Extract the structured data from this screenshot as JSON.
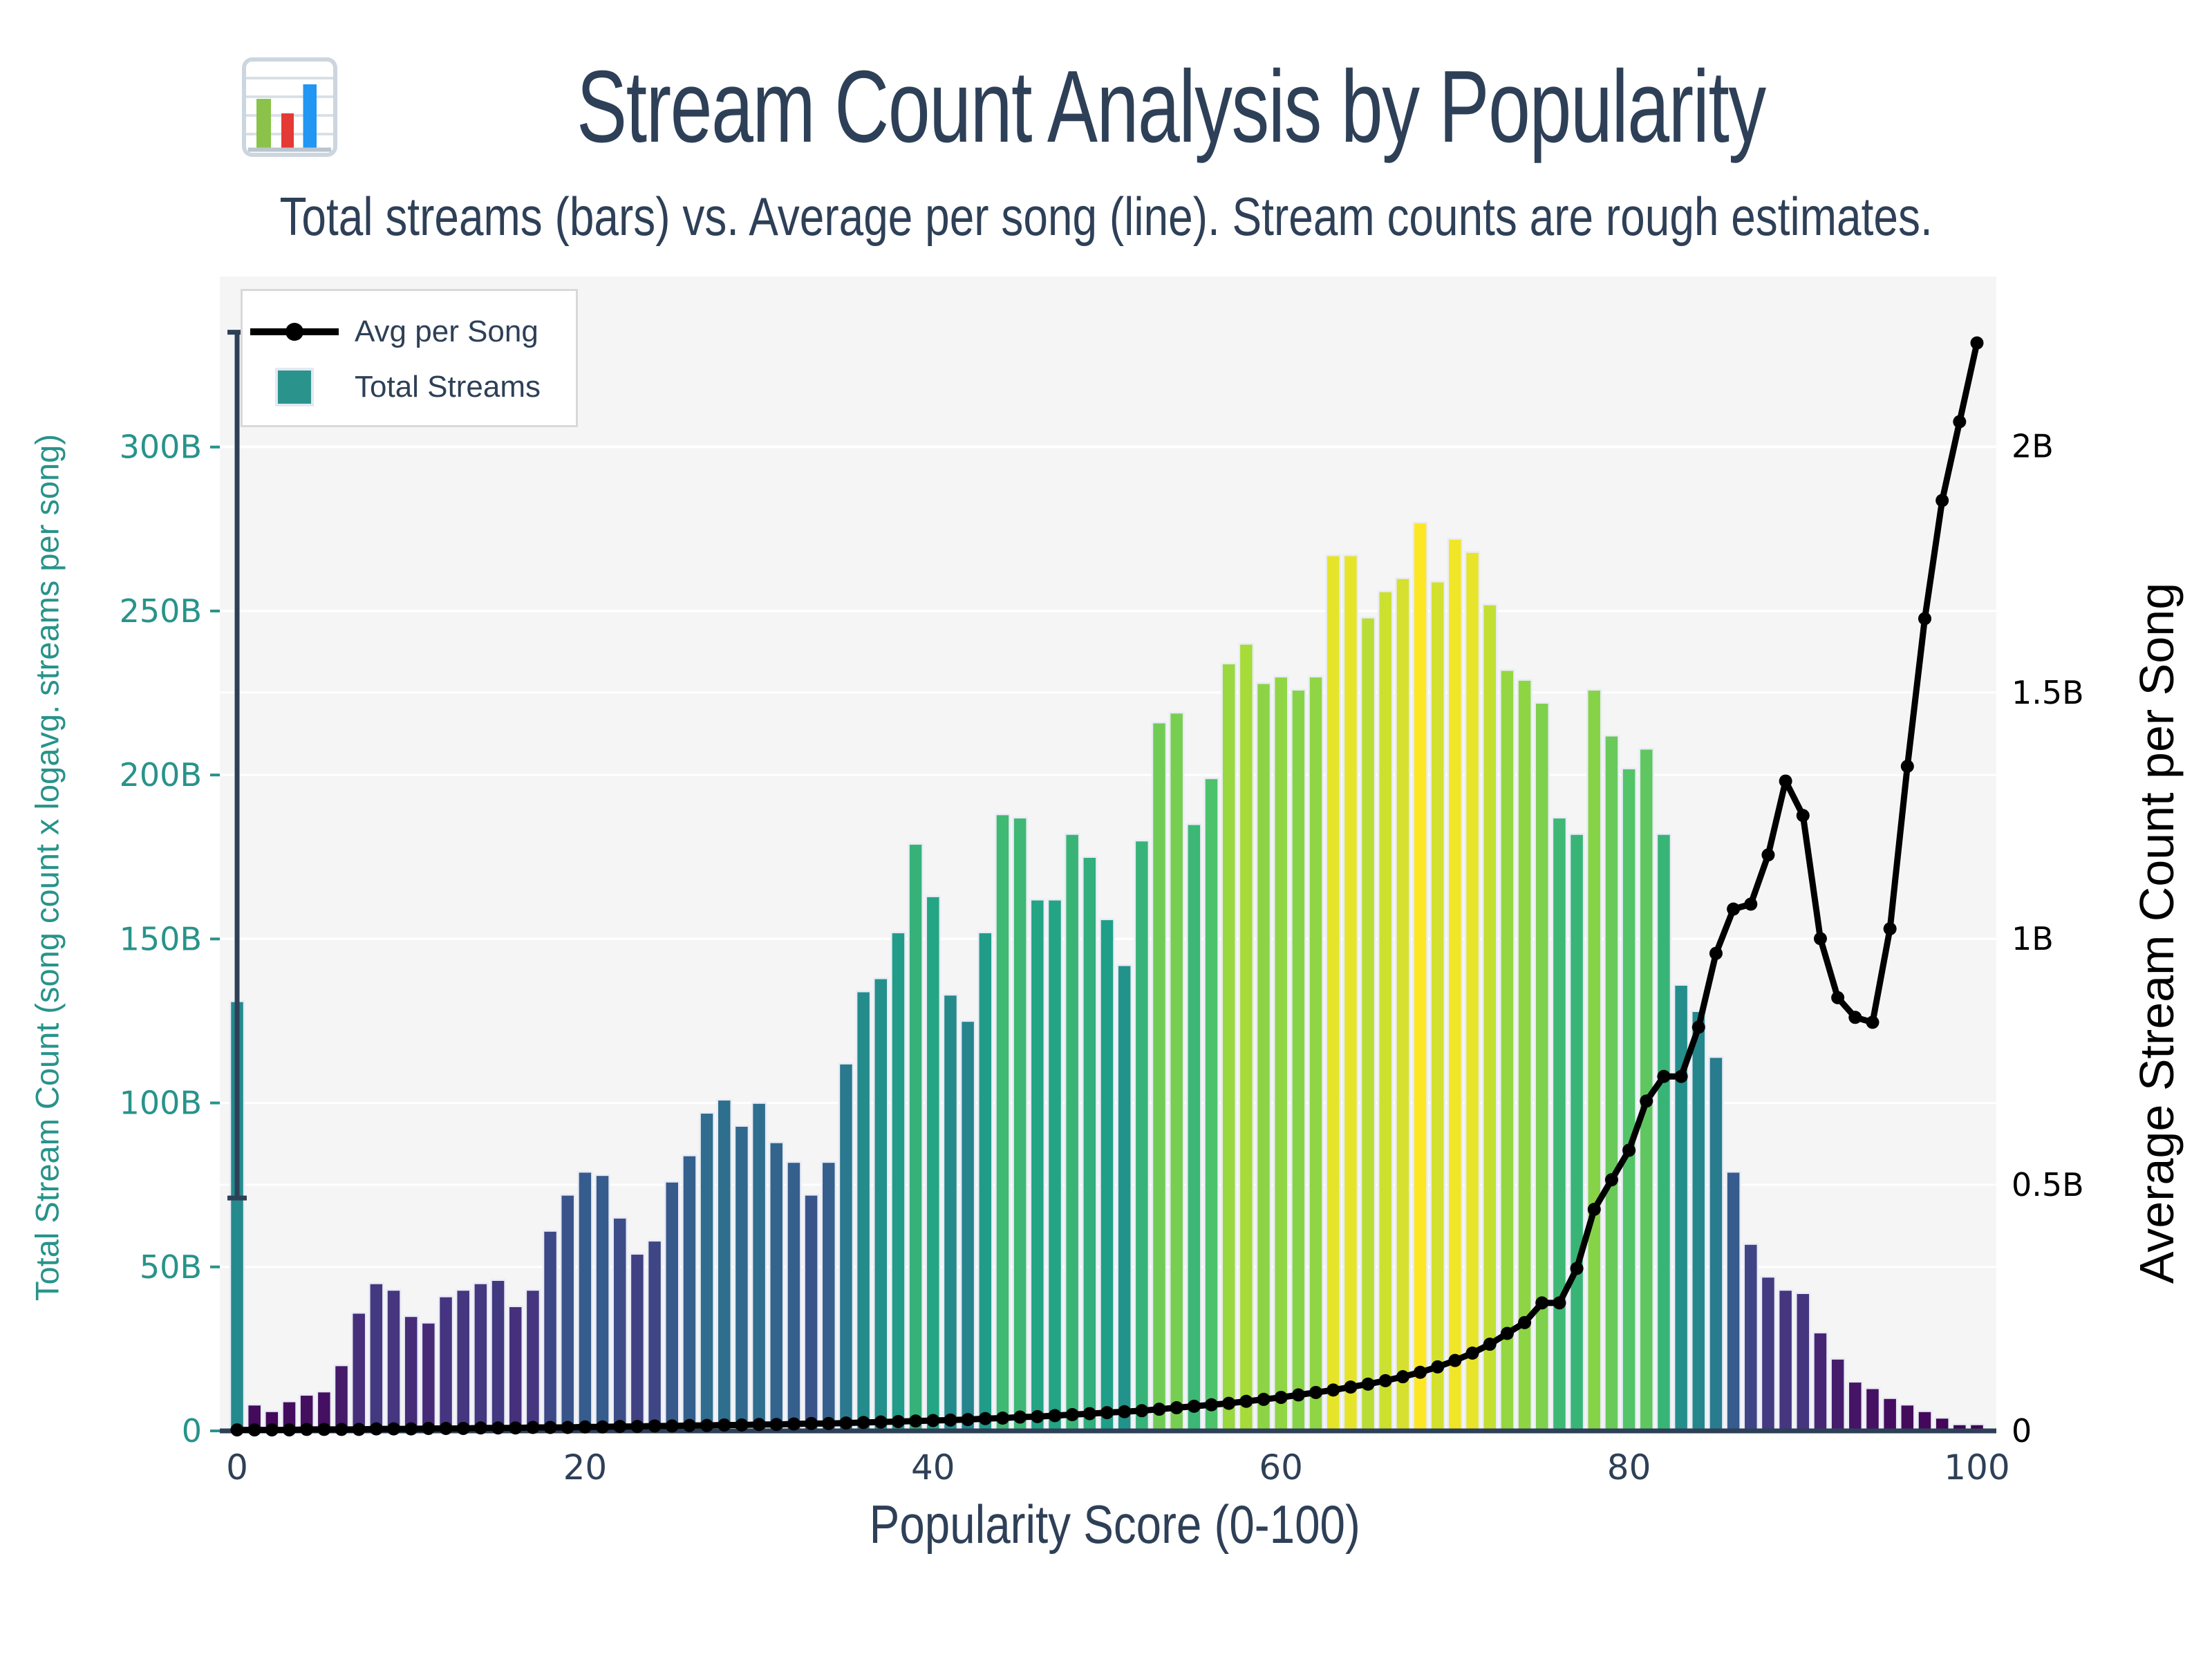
{
  "title": {
    "text": "Stream Count Analysis by Popularity",
    "icon": "bar-chart-icon"
  },
  "subtitle": "Total streams (bars) vs. Average per song (line). Stream counts are rough estimates.",
  "legend": {
    "items": [
      {
        "label": "Avg per Song",
        "symbol": "line-marker"
      },
      {
        "label": "Total Streams",
        "symbol": "teal-square"
      }
    ]
  },
  "axes": {
    "x": {
      "label": "Popularity Score (0-100)",
      "tick_labels": [
        "0",
        "20",
        "40",
        "60",
        "80",
        "100"
      ],
      "tick_values": [
        0,
        20,
        40,
        60,
        80,
        100
      ]
    },
    "y_left": {
      "label": "Total Stream Count (song count x logavg. streams per song)",
      "tick_labels": [
        "0",
        "50B",
        "100B",
        "150B",
        "200B",
        "250B",
        "300B"
      ],
      "tick_values": [
        0,
        50,
        100,
        150,
        200,
        250,
        300
      ],
      "range": [
        0,
        352
      ],
      "unit": "billions of streams"
    },
    "y_right": {
      "label": "Average Stream Count per Song",
      "tick_labels": [
        "0",
        "0.5B",
        "1B",
        "1.5B",
        "2B"
      ],
      "tick_values": [
        0,
        0.5,
        1,
        1.5,
        2
      ],
      "range": [
        0,
        2.345
      ],
      "unit": "billions of streams"
    }
  },
  "colors": {
    "navy_text": "#2e4057",
    "teal_axis": "#28938a",
    "legend_square": "#2a948c",
    "line_color": "#000000",
    "plot_bg": "#f5f5f6",
    "gridline": "#ffffff",
    "bar_edge": "#e9ecf5",
    "legend_border": "#d9d9d9",
    "error_bar": "#2e4057",
    "viridis_stops": [
      "#440154",
      "#46327e",
      "#365c8d",
      "#277f8e",
      "#1fa187",
      "#4ac16d",
      "#a0da39",
      "#fde725"
    ]
  },
  "chart_data": {
    "type": "bar",
    "title": "Stream Count Analysis by Popularity",
    "xlabel": "Popularity Score (0-100)",
    "ylabel_left": "Total Stream Count (song count x logavg. streams per song)",
    "ylabel_right": "Average Stream Count per Song",
    "grid": true,
    "legend_position": "top-left",
    "x": [
      0,
      1,
      2,
      3,
      4,
      5,
      6,
      7,
      8,
      9,
      10,
      11,
      12,
      13,
      14,
      15,
      16,
      17,
      18,
      19,
      20,
      21,
      22,
      23,
      24,
      25,
      26,
      27,
      28,
      29,
      30,
      31,
      32,
      33,
      34,
      35,
      36,
      37,
      38,
      39,
      40,
      41,
      42,
      43,
      44,
      45,
      46,
      47,
      48,
      49,
      50,
      51,
      52,
      53,
      54,
      55,
      56,
      57,
      58,
      59,
      60,
      61,
      62,
      63,
      64,
      65,
      66,
      67,
      68,
      69,
      70,
      71,
      72,
      73,
      74,
      75,
      76,
      77,
      78,
      79,
      80,
      81,
      82,
      83,
      84,
      85,
      86,
      87,
      88,
      89,
      90,
      91,
      92,
      93,
      94,
      95,
      96,
      97,
      98,
      99,
      100
    ],
    "series": [
      {
        "name": "Total Streams",
        "type": "bar",
        "axis": "left",
        "unit": "B",
        "values": [
          131,
          8,
          6,
          9,
          11,
          12,
          20,
          36,
          45,
          43,
          35,
          33,
          41,
          43,
          45,
          46,
          38,
          43,
          61,
          72,
          79,
          78,
          65,
          54,
          58,
          76,
          84,
          97,
          101,
          93,
          100,
          88,
          82,
          72,
          82,
          112,
          134,
          138,
          152,
          179,
          163,
          133,
          125,
          152,
          188,
          187,
          162,
          162,
          182,
          175,
          156,
          142,
          180,
          216,
          219,
          185,
          199,
          234,
          240,
          228,
          230,
          226,
          230,
          267,
          267,
          248,
          256,
          260,
          277,
          259,
          272,
          268,
          252,
          232,
          229,
          222,
          187,
          182,
          226,
          212,
          202,
          208,
          182,
          136,
          128,
          114,
          79,
          57,
          47,
          43,
          42,
          30,
          22,
          15,
          13,
          10,
          8,
          6,
          4,
          2,
          2
        ]
      },
      {
        "name": "Avg per Song",
        "type": "line",
        "axis": "right",
        "unit": "B",
        "values": [
          0.002,
          0.002,
          0.002,
          0.002,
          0.003,
          0.003,
          0.003,
          0.003,
          0.004,
          0.004,
          0.004,
          0.005,
          0.005,
          0.005,
          0.006,
          0.006,
          0.006,
          0.007,
          0.007,
          0.007,
          0.008,
          0.008,
          0.009,
          0.009,
          0.01,
          0.01,
          0.011,
          0.011,
          0.012,
          0.012,
          0.013,
          0.013,
          0.014,
          0.015,
          0.015,
          0.016,
          0.017,
          0.018,
          0.019,
          0.02,
          0.021,
          0.022,
          0.023,
          0.025,
          0.026,
          0.028,
          0.029,
          0.031,
          0.033,
          0.035,
          0.037,
          0.039,
          0.041,
          0.044,
          0.047,
          0.05,
          0.053,
          0.056,
          0.06,
          0.064,
          0.068,
          0.073,
          0.078,
          0.083,
          0.089,
          0.095,
          0.102,
          0.11,
          0.119,
          0.13,
          0.143,
          0.158,
          0.176,
          0.198,
          0.22,
          0.26,
          0.26,
          0.33,
          0.45,
          0.51,
          0.57,
          0.67,
          0.72,
          0.72,
          0.82,
          0.97,
          1.06,
          1.07,
          1.17,
          1.32,
          1.25,
          1.0,
          0.88,
          0.84,
          0.83,
          1.02,
          1.35,
          1.65,
          1.89,
          2.05,
          2.21
        ]
      }
    ],
    "error_bar": {
      "x": 0,
      "low": 71,
      "high": 335
    },
    "bar_color_mapping": "viridis colormap scaled to bar value (0 to 277B)"
  }
}
